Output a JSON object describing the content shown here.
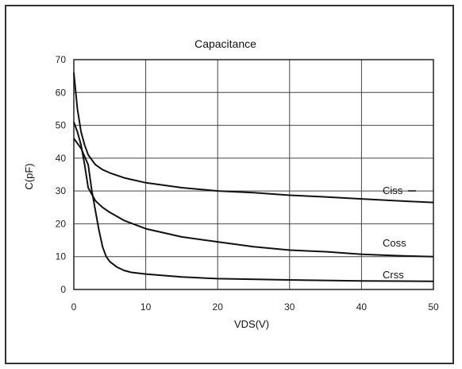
{
  "chart_data": {
    "type": "line",
    "title": "Capacitance",
    "xlabel": "VDS(V)",
    "ylabel": "C(pF)",
    "xlim": [
      0,
      50
    ],
    "ylim": [
      0,
      70
    ],
    "xticks": [
      0,
      10,
      20,
      30,
      40,
      50
    ],
    "yticks": [
      0,
      10,
      20,
      30,
      40,
      50,
      60,
      70
    ],
    "grid": true,
    "series": [
      {
        "name": "Ciss",
        "x": [
          0,
          0.5,
          1,
          1.5,
          2,
          3,
          4,
          5,
          7,
          10,
          15,
          20,
          25,
          30,
          35,
          40,
          45,
          50
        ],
        "values": [
          66,
          55,
          48,
          44,
          41,
          38,
          36.5,
          35.5,
          34,
          32.5,
          31,
          30,
          29.5,
          28.7,
          28.2,
          27.6,
          27,
          26.5
        ]
      },
      {
        "name": "Coss",
        "x": [
          0,
          0.5,
          1,
          1.5,
          2,
          3,
          4,
          5,
          7,
          10,
          15,
          20,
          25,
          30,
          35,
          40,
          45,
          50
        ],
        "values": [
          51,
          48,
          44,
          38,
          31,
          27,
          25,
          23.5,
          21,
          18.5,
          16,
          14.5,
          13,
          12,
          11.5,
          10.7,
          10.3,
          10
        ]
      },
      {
        "name": "Crss",
        "x": [
          0,
          1,
          2,
          2.5,
          3,
          3.5,
          4,
          4.5,
          5,
          6,
          7,
          8,
          10,
          15,
          20,
          30,
          40,
          50
        ],
        "values": [
          46,
          43,
          38,
          30,
          24,
          18,
          13,
          10,
          8.5,
          6.8,
          5.8,
          5.2,
          4.7,
          3.8,
          3.3,
          2.9,
          2.6,
          2.5
        ]
      }
    ]
  }
}
